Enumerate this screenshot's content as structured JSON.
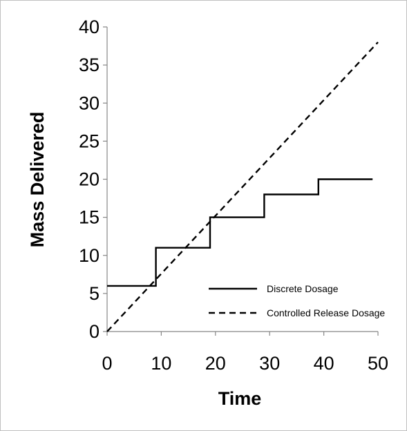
{
  "chart_data": {
    "type": "line",
    "xlabel": "Time",
    "ylabel": "Mass Delivered",
    "xlim": [
      0,
      50
    ],
    "ylim": [
      0,
      40
    ],
    "xticks": [
      0,
      10,
      20,
      30,
      40,
      50
    ],
    "yticks": [
      0,
      5,
      10,
      15,
      20,
      25,
      30,
      35,
      40
    ],
    "grid": false,
    "legend_position": "bottom-right",
    "series": [
      {
        "name": "Discrete Dosage",
        "style": "solid",
        "color": "#000000",
        "x": [
          0,
          9,
          9,
          19,
          19,
          29,
          29,
          39,
          39,
          49
        ],
        "y": [
          6,
          6,
          11,
          11,
          15,
          15,
          18,
          18,
          20,
          20
        ]
      },
      {
        "name": "Controlled Release Dosage",
        "style": "dashed",
        "color": "#000000",
        "x": [
          0,
          50
        ],
        "y": [
          0,
          38
        ]
      }
    ]
  }
}
